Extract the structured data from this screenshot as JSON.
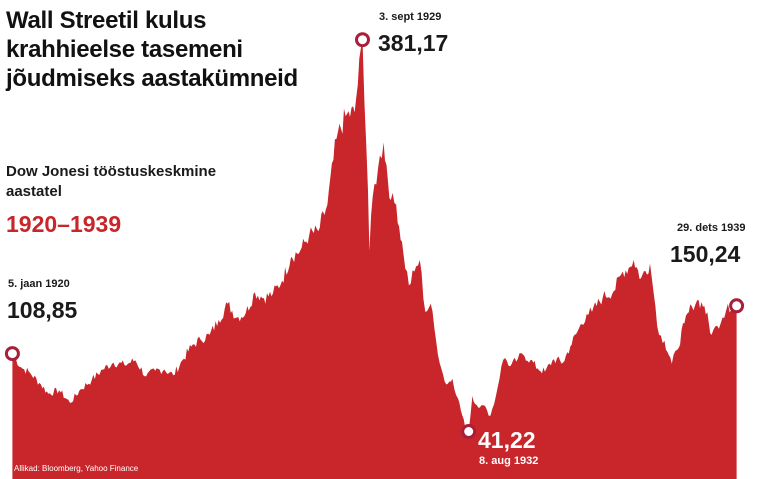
{
  "title": "Wall Streetil kulus krahhieelse tasemeni jõudmiseks aastakümneid",
  "subtitle": "Dow Jonesi tööstuskeskmine aastatel",
  "years_label": "1920–1939",
  "source": "Allikad: Bloomberg, Yahoo Finance",
  "colors": {
    "area": "#c8262b",
    "marker_ring": "#a81f3a",
    "years_text": "#c8262b"
  },
  "chart_data": {
    "type": "area",
    "title": "Wall Streetil kulus krahhieelse tasemeni jõudmiseks aastakümneid",
    "subtitle": "Dow Jonesi tööstuskeskmine aastatel 1920–1939",
    "xlabel": "",
    "ylabel": "",
    "grid": false,
    "legend": "none",
    "x_range": [
      1920.0,
      1940.0
    ],
    "ylim": [
      0,
      400
    ],
    "points": [
      [
        1920.01,
        108.85
      ],
      [
        1920.25,
        97
      ],
      [
        1920.5,
        92
      ],
      [
        1920.8,
        82
      ],
      [
        1921.0,
        74
      ],
      [
        1921.3,
        77
      ],
      [
        1921.6,
        66
      ],
      [
        1921.9,
        78
      ],
      [
        1922.2,
        86
      ],
      [
        1922.5,
        95
      ],
      [
        1922.8,
        101
      ],
      [
        1923.1,
        99
      ],
      [
        1923.4,
        103
      ],
      [
        1923.7,
        89
      ],
      [
        1923.95,
        94
      ],
      [
        1924.2,
        95
      ],
      [
        1924.45,
        90
      ],
      [
        1924.7,
        103
      ],
      [
        1924.95,
        115
      ],
      [
        1925.2,
        121
      ],
      [
        1925.45,
        125
      ],
      [
        1925.7,
        138
      ],
      [
        1925.95,
        152
      ],
      [
        1926.2,
        140
      ],
      [
        1926.45,
        144
      ],
      [
        1926.7,
        162
      ],
      [
        1926.95,
        157
      ],
      [
        1927.2,
        161
      ],
      [
        1927.45,
        172
      ],
      [
        1927.7,
        193
      ],
      [
        1927.95,
        198
      ],
      [
        1928.2,
        212
      ],
      [
        1928.45,
        215
      ],
      [
        1928.7,
        238
      ],
      [
        1928.95,
        295
      ],
      [
        1929.2,
        315
      ],
      [
        1929.45,
        318
      ],
      [
        1929.67,
        381.17
      ],
      [
        1929.82,
        250
      ],
      [
        1929.86,
        198
      ],
      [
        1929.95,
        245
      ],
      [
        1930.1,
        270
      ],
      [
        1930.25,
        292
      ],
      [
        1930.45,
        242
      ],
      [
        1930.6,
        238
      ],
      [
        1930.8,
        195
      ],
      [
        1930.95,
        168
      ],
      [
        1931.1,
        180
      ],
      [
        1931.25,
        190
      ],
      [
        1931.4,
        145
      ],
      [
        1931.55,
        152
      ],
      [
        1931.7,
        120
      ],
      [
        1931.85,
        95
      ],
      [
        1931.98,
        82
      ],
      [
        1932.15,
        87
      ],
      [
        1932.3,
        70
      ],
      [
        1932.5,
        45
      ],
      [
        1932.6,
        41.22
      ],
      [
        1932.7,
        72
      ],
      [
        1932.78,
        65
      ],
      [
        1932.95,
        64
      ],
      [
        1933.1,
        60
      ],
      [
        1933.2,
        55
      ],
      [
        1933.35,
        72
      ],
      [
        1933.5,
        98
      ],
      [
        1933.6,
        105
      ],
      [
        1933.75,
        98
      ],
      [
        1933.95,
        104
      ],
      [
        1934.1,
        108
      ],
      [
        1934.3,
        103
      ],
      [
        1934.5,
        96
      ],
      [
        1934.7,
        93
      ],
      [
        1934.95,
        104
      ],
      [
        1935.2,
        101
      ],
      [
        1935.4,
        115
      ],
      [
        1935.6,
        128
      ],
      [
        1935.85,
        143
      ],
      [
        1936.0,
        145
      ],
      [
        1936.3,
        158
      ],
      [
        1936.6,
        163
      ],
      [
        1936.85,
        180
      ],
      [
        1937.05,
        184
      ],
      [
        1937.15,
        190
      ],
      [
        1937.35,
        174
      ],
      [
        1937.6,
        187
      ],
      [
        1937.75,
        150
      ],
      [
        1937.85,
        125
      ],
      [
        1938.0,
        120
      ],
      [
        1938.2,
        100
      ],
      [
        1938.35,
        112
      ],
      [
        1938.55,
        135
      ],
      [
        1938.75,
        150
      ],
      [
        1938.9,
        155
      ],
      [
        1939.1,
        150
      ],
      [
        1939.3,
        125
      ],
      [
        1939.45,
        133
      ],
      [
        1939.6,
        140
      ],
      [
        1939.75,
        152
      ],
      [
        1939.85,
        147
      ],
      [
        1939.99,
        150.24
      ]
    ],
    "annotations": [
      {
        "date": "5. jaan 1920",
        "value": "108,85",
        "x": 1920.01,
        "y": 108.85
      },
      {
        "date": "3. sept 1929",
        "value": "381,17",
        "x": 1929.67,
        "y": 381.17
      },
      {
        "date": "8. aug 1932",
        "value": "41,22",
        "x": 1932.6,
        "y": 41.22
      },
      {
        "date": "29. dets 1939",
        "value": "150,24",
        "x": 1939.99,
        "y": 150.24
      }
    ]
  }
}
